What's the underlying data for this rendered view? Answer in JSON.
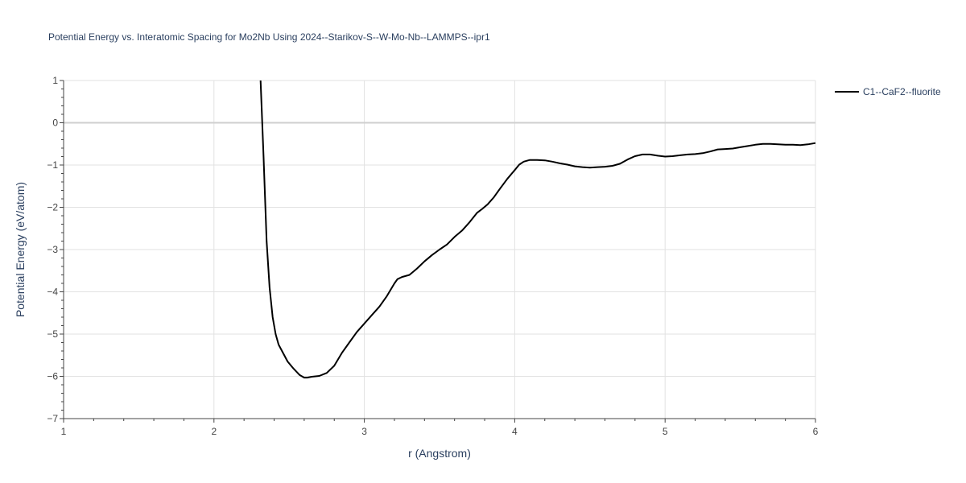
{
  "chart_data": {
    "type": "line",
    "title": "Potential Energy vs. Interatomic Spacing for Mo2Nb Using 2024--Starikov-S--W-Mo-Nb--LAMMPS--ipr1",
    "xlabel": "r (Angstrom)",
    "ylabel": "Potential Energy (eV/atom)",
    "xlim": [
      1,
      6
    ],
    "ylim": [
      -7,
      1
    ],
    "xticks": [
      1,
      2,
      3,
      4,
      5,
      6
    ],
    "yticks": [
      -7,
      -6,
      -5,
      -4,
      -3,
      -2,
      -1,
      0,
      1
    ],
    "xtick_labels": [
      "1",
      "2",
      "3",
      "4",
      "5",
      "6"
    ],
    "ytick_labels": [
      "−7",
      "−6",
      "−5",
      "−4",
      "−3",
      "−2",
      "−1",
      "0",
      "1"
    ],
    "grid": true,
    "legend_position": "top-right",
    "series": [
      {
        "name": "C1--CaF2--fluorite",
        "color": "#000000",
        "x": [
          2.31,
          2.33,
          2.35,
          2.37,
          2.39,
          2.41,
          2.43,
          2.46,
          2.49,
          2.53,
          2.57,
          2.6,
          2.62,
          2.65,
          2.7,
          2.75,
          2.8,
          2.85,
          2.9,
          2.95,
          3.0,
          3.05,
          3.1,
          3.15,
          3.2,
          3.22,
          3.25,
          3.3,
          3.35,
          3.4,
          3.45,
          3.5,
          3.55,
          3.6,
          3.65,
          3.7,
          3.75,
          3.78,
          3.82,
          3.86,
          3.9,
          3.95,
          4.0,
          4.03,
          4.06,
          4.1,
          4.15,
          4.2,
          4.25,
          4.3,
          4.35,
          4.4,
          4.45,
          4.5,
          4.55,
          4.6,
          4.65,
          4.7,
          4.75,
          4.8,
          4.85,
          4.9,
          4.95,
          5.0,
          5.05,
          5.1,
          5.15,
          5.2,
          5.25,
          5.3,
          5.35,
          5.4,
          5.45,
          5.5,
          5.55,
          5.6,
          5.65,
          5.7,
          5.75,
          5.8,
          5.85,
          5.9,
          5.95,
          6.0
        ],
        "y": [
          1.0,
          -0.8,
          -2.8,
          -3.9,
          -4.6,
          -5.0,
          -5.25,
          -5.45,
          -5.65,
          -5.82,
          -5.97,
          -6.03,
          -6.03,
          -6.01,
          -5.99,
          -5.92,
          -5.75,
          -5.45,
          -5.2,
          -4.95,
          -4.75,
          -4.55,
          -4.35,
          -4.1,
          -3.8,
          -3.7,
          -3.65,
          -3.6,
          -3.45,
          -3.28,
          -3.13,
          -3.0,
          -2.88,
          -2.7,
          -2.55,
          -2.35,
          -2.13,
          -2.05,
          -1.93,
          -1.77,
          -1.57,
          -1.33,
          -1.12,
          -0.99,
          -0.92,
          -0.88,
          -0.88,
          -0.89,
          -0.92,
          -0.96,
          -0.99,
          -1.03,
          -1.05,
          -1.06,
          -1.05,
          -1.04,
          -1.02,
          -0.97,
          -0.87,
          -0.79,
          -0.75,
          -0.75,
          -0.78,
          -0.8,
          -0.79,
          -0.77,
          -0.75,
          -0.74,
          -0.72,
          -0.68,
          -0.63,
          -0.62,
          -0.61,
          -0.58,
          -0.55,
          -0.52,
          -0.5,
          -0.5,
          -0.51,
          -0.52,
          -0.52,
          -0.53,
          -0.51,
          -0.48
        ]
      }
    ]
  }
}
